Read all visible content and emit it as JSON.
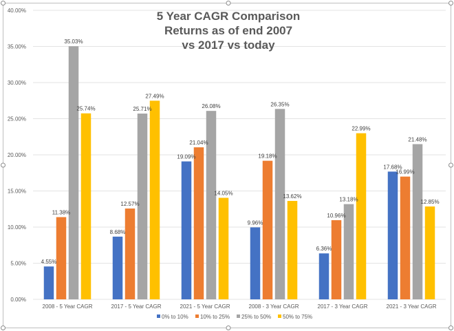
{
  "chart_data": {
    "type": "bar",
    "title": [
      "5 Year CAGR Comparison",
      "Returns as of end 2007",
      "vs 2017 vs today"
    ],
    "xlabel": "",
    "ylabel": "",
    "ylim": [
      0,
      40
    ],
    "ytick_step": 5,
    "ytick_format": "percent_2dp",
    "grid": true,
    "legend_position": "bottom",
    "categories": [
      "2008 - 5 Year CAGR",
      "2017 - 5 Year CAGR",
      "2021 - 5 Year CAGR",
      "2008 - 3 Year CAGR",
      "2017 - 3 Year CAGR",
      "2021 - 3 Year CAGR"
    ],
    "series": [
      {
        "name": "0% to 10%",
        "color": "#4472C4",
        "values": [
          4.55,
          8.68,
          19.09,
          9.96,
          6.36,
          17.68
        ]
      },
      {
        "name": "10% to 25%",
        "color": "#ED7D31",
        "values": [
          11.38,
          12.57,
          21.04,
          19.18,
          10.96,
          16.99
        ]
      },
      {
        "name": "25% to 50%",
        "color": "#A5A5A5",
        "values": [
          35.03,
          25.71,
          26.08,
          26.35,
          13.18,
          21.48
        ]
      },
      {
        "name": "50% to 75%",
        "color": "#FFC000",
        "values": [
          25.74,
          27.49,
          14.05,
          13.62,
          22.99,
          12.85
        ]
      }
    ]
  }
}
